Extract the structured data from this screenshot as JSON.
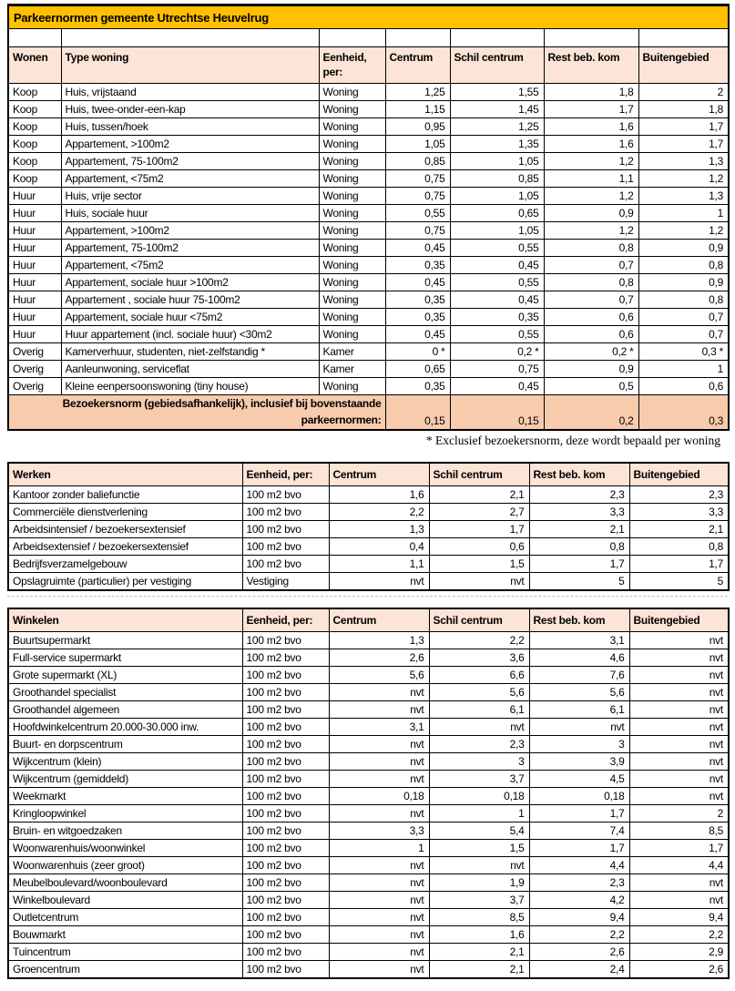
{
  "title": "Parkeernormen gemeente Utrechtse Heuvelrug",
  "footnote": "* Exclusief bezoekersnorm, deze wordt bepaald per woning",
  "colors": {
    "title_bg": "#FFC000",
    "header_bg": "#FCE4D6",
    "visitor_row_bg": "#F8CBAD",
    "border": "#000000"
  },
  "wonen_table": {
    "headers": [
      "Wonen",
      "Type woning",
      "Eenheid, per:",
      "Centrum",
      "Schil centrum",
      "Rest beb. kom",
      "Buitengebied"
    ],
    "rows": [
      [
        "Koop",
        "Huis, vrijstaand",
        "Woning",
        "1,25",
        "1,55",
        "1,8",
        "2"
      ],
      [
        "Koop",
        "Huis, twee-onder-een-kap",
        "Woning",
        "1,15",
        "1,45",
        "1,7",
        "1,8"
      ],
      [
        "Koop",
        "Huis, tussen/hoek",
        "Woning",
        "0,95",
        "1,25",
        "1,6",
        "1,7"
      ],
      [
        "Koop",
        "Appartement, >100m2",
        "Woning",
        "1,05",
        "1,35",
        "1,6",
        "1,7"
      ],
      [
        "Koop",
        "Appartement, 75-100m2",
        "Woning",
        "0,85",
        "1,05",
        "1,2",
        "1,3"
      ],
      [
        "Koop",
        "Appartement, <75m2",
        "Woning",
        "0,75",
        "0,85",
        "1,1",
        "1,2"
      ],
      [
        "Huur",
        "Huis, vrije sector",
        "Woning",
        "0,75",
        "1,05",
        "1,2",
        "1,3"
      ],
      [
        "Huur",
        "Huis, sociale huur",
        "Woning",
        "0,55",
        "0,65",
        "0,9",
        "1"
      ],
      [
        "Huur",
        "Appartement, >100m2",
        "Woning",
        "0,75",
        "1,05",
        "1,2",
        "1,2"
      ],
      [
        "Huur",
        "Appartement, 75-100m2",
        "Woning",
        "0,45",
        "0,55",
        "0,8",
        "0,9"
      ],
      [
        "Huur",
        "Appartement, <75m2",
        "Woning",
        "0,35",
        "0,45",
        "0,7",
        "0,8"
      ],
      [
        "Huur",
        "Appartement, sociale huur >100m2",
        "Woning",
        "0,45",
        "0,55",
        "0,8",
        "0,9"
      ],
      [
        "Huur",
        "Appartement , sociale huur 75-100m2",
        "Woning",
        "0,35",
        "0,45",
        "0,7",
        "0,8"
      ],
      [
        "Huur",
        "Appartement, sociale huur <75m2",
        "Woning",
        "0,35",
        "0,35",
        "0,6",
        "0,7"
      ],
      [
        "Huur",
        "Huur appartement (incl. sociale huur)  <30m2",
        "Woning",
        "0,45",
        "0,55",
        "0,6",
        "0,7"
      ],
      [
        "Overig",
        "Kamerverhuur, studenten, niet-zelfstandig *",
        "Kamer",
        "0 *",
        "0,2 *",
        "0,2 *",
        "0,3 *"
      ],
      [
        "Overig",
        "Aanleunwoning, serviceflat",
        "Kamer",
        "0,65",
        "0,75",
        "0,9",
        "1"
      ],
      [
        "Overig",
        "Kleine eenpersoonswoning (tiny house)",
        "Woning",
        "0,35",
        "0,45",
        "0,5",
        "0,6"
      ]
    ],
    "bezoekersnorm": {
      "label": "Bezoekersnorm (gebiedsafhankelijk), inclusief bij bovenstaande parkeernormen:",
      "values": [
        "0,15",
        "0,15",
        "0,2",
        "0,3"
      ]
    }
  },
  "werken_table": {
    "headers": [
      "Werken",
      "Eenheid, per:",
      "Centrum",
      "Schil centrum",
      "Rest beb. kom",
      "Buitengebied"
    ],
    "rows": [
      [
        "Kantoor zonder baliefunctie",
        "100 m2 bvo",
        "1,6",
        "2,1",
        "2,3",
        "2,3"
      ],
      [
        "Commerciële dienstverlening",
        "100 m2 bvo",
        "2,2",
        "2,7",
        "3,3",
        "3,3"
      ],
      [
        "Arbeidsintensief / bezoekersextensief",
        "100 m2 bvo",
        "1,3",
        "1,7",
        "2,1",
        "2,1"
      ],
      [
        "Arbeidsextensief / bezoekersextensief",
        "100 m2 bvo",
        "0,4",
        "0,6",
        "0,8",
        "0,8"
      ],
      [
        "Bedrijfsverzamelgebouw",
        "100 m2 bvo",
        "1,1",
        "1,5",
        "1,7",
        "1,7"
      ],
      [
        "Opslagruimte (particulier) per vestiging",
        "Vestiging",
        "nvt",
        "nvt",
        "5",
        "5"
      ]
    ]
  },
  "winkelen_table": {
    "headers": [
      "Winkelen",
      "Eenheid, per:",
      "Centrum",
      "Schil centrum",
      "Rest beb. kom",
      "Buitengebied"
    ],
    "rows": [
      [
        "Buurtsupermarkt",
        "100 m2 bvo",
        "1,3",
        "2,2",
        "3,1",
        "nvt"
      ],
      [
        "Full-service supermarkt",
        "100 m2 bvo",
        "2,6",
        "3,6",
        "4,6",
        "nvt"
      ],
      [
        "Grote supermarkt (XL)",
        "100 m2 bvo",
        "5,6",
        "6,6",
        "7,6",
        "nvt"
      ],
      [
        "Groothandel specialist",
        "100 m2 bvo",
        "nvt",
        "5,6",
        "5,6",
        "nvt"
      ],
      [
        "Groothandel algemeen",
        "100 m2 bvo",
        "nvt",
        "6,1",
        "6,1",
        "nvt"
      ],
      [
        "Hoofdwinkelcentrum 20.000-30.000 inw.",
        "100 m2 bvo",
        "3,1",
        "nvt",
        "nvt",
        "nvt"
      ],
      [
        "Buurt- en dorpscentrum",
        "100 m2 bvo",
        "nvt",
        "2,3",
        "3",
        "nvt"
      ],
      [
        "Wijkcentrum (klein)",
        "100 m2 bvo",
        "nvt",
        "3",
        "3,9",
        "nvt"
      ],
      [
        "Wijkcentrum (gemiddeld)",
        "100 m2 bvo",
        "nvt",
        "3,7",
        "4,5",
        "nvt"
      ],
      [
        "Weekmarkt",
        "100 m2 bvo",
        "0,18",
        "0,18",
        "0,18",
        "nvt"
      ],
      [
        "Kringloopwinkel",
        "100 m2 bvo",
        "nvt",
        "1",
        "1,7",
        "2"
      ],
      [
        "Bruin- en witgoedzaken",
        "100 m2 bvo",
        "3,3",
        "5,4",
        "7,4",
        "8,5"
      ],
      [
        "Woonwarenhuis/woonwinkel",
        "100 m2 bvo",
        "1",
        "1,5",
        "1,7",
        "1,7"
      ],
      [
        "Woonwarenhuis (zeer groot)",
        "100 m2 bvo",
        "nvt",
        "nvt",
        "4,4",
        "4,4"
      ],
      [
        "Meubelboulevard/woonboulevard",
        "100 m2 bvo",
        "nvt",
        "1,9",
        "2,3",
        "nvt"
      ],
      [
        "Winkelboulevard",
        "100 m2 bvo",
        "nvt",
        "3,7",
        "4,2",
        "nvt"
      ],
      [
        "Outletcentrum",
        "100 m2 bvo",
        "nvt",
        "8,5",
        "9,4",
        "9,4"
      ],
      [
        "Bouwmarkt",
        "100 m2 bvo",
        "nvt",
        "1,6",
        "2,2",
        "2,2"
      ],
      [
        "Tuincentrum",
        "100 m2 bvo",
        "nvt",
        "2,1",
        "2,6",
        "2,9"
      ],
      [
        "Groencentrum",
        "100 m2 bvo",
        "nvt",
        "2,1",
        "2,4",
        "2,6"
      ]
    ]
  }
}
